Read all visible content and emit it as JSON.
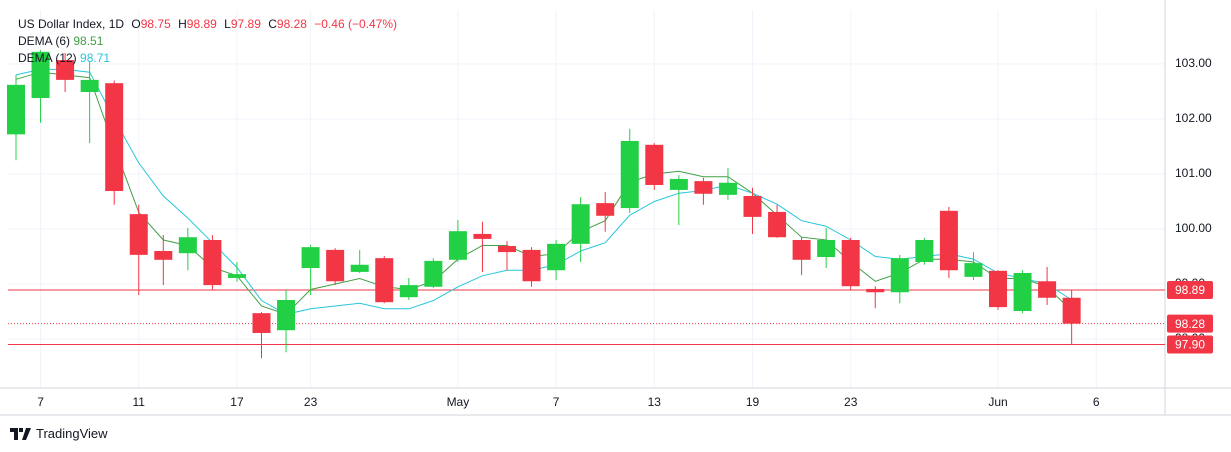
{
  "chart_data": {
    "type": "candlestick",
    "title": "US Dollar Index, 1D",
    "ohlc_letters": [
      "O",
      "H",
      "L",
      "C"
    ],
    "change": "−0.46 (−0.47%)",
    "categories": [
      null,
      "7",
      null,
      null,
      null,
      "11",
      null,
      null,
      null,
      "17",
      null,
      null,
      "23",
      null,
      null,
      null,
      null,
      null,
      "May",
      null,
      null,
      null,
      "7",
      null,
      null,
      null,
      "13",
      null,
      null,
      null,
      "19",
      null,
      null,
      null,
      "23",
      null,
      null,
      null,
      null,
      null,
      "Jun",
      null,
      null,
      null,
      "6"
    ],
    "open": [
      101.72,
      102.38,
      103.07,
      102.49,
      102.65,
      100.27,
      99.6,
      99.56,
      99.8,
      99.11,
      98.47,
      98.16,
      99.29,
      99.62,
      99.22,
      99.47,
      98.76,
      98.95,
      99.44,
      99.91,
      99.69,
      99.62,
      99.25,
      99.73,
      100.47,
      100.38,
      101.53,
      100.71,
      100.87,
      100.62,
      100.6,
      100.31,
      99.8,
      99.49,
      99.8,
      98.91,
      98.85,
      99.4,
      100.33,
      99.13,
      99.24,
      98.51,
      99.05,
      98.75,
      null
    ],
    "high": [
      102.8,
      103.25,
      103.2,
      103.04,
      102.7,
      100.44,
      99.89,
      100.02,
      99.89,
      99.4,
      98.49,
      98.89,
      99.71,
      99.65,
      99.62,
      99.51,
      99.11,
      99.47,
      100.16,
      100.13,
      99.78,
      99.67,
      99.8,
      100.58,
      100.67,
      101.82,
      101.56,
      100.98,
      100.93,
      101.11,
      100.75,
      100.44,
      99.85,
      100.02,
      99.84,
      98.96,
      99.53,
      99.84,
      100.4,
      99.58,
      99.25,
      99.25,
      99.31,
      98.89,
      null
    ],
    "low": [
      101.25,
      101.93,
      102.49,
      101.56,
      100.44,
      98.8,
      98.98,
      99.25,
      98.89,
      99.04,
      97.65,
      97.76,
      98.8,
      98.98,
      99.2,
      98.65,
      98.71,
      98.93,
      99.4,
      99.22,
      99.25,
      98.95,
      99.07,
      99.4,
      99.95,
      100.29,
      100.71,
      100.07,
      100.44,
      100.53,
      99.91,
      99.84,
      99.16,
      99.29,
      98.89,
      98.56,
      98.65,
      99.35,
      99.11,
      99.07,
      98.53,
      98.47,
      98.62,
      97.89,
      null
    ],
    "close": [
      102.62,
      103.22,
      102.71,
      102.71,
      100.69,
      99.53,
      99.44,
      99.85,
      98.98,
      99.18,
      98.11,
      98.71,
      99.67,
      99.05,
      99.35,
      98.67,
      98.98,
      99.42,
      99.96,
      99.82,
      99.58,
      99.05,
      99.73,
      100.45,
      100.24,
      101.6,
      100.8,
      100.91,
      100.64,
      100.84,
      100.22,
      99.85,
      99.44,
      99.8,
      98.96,
      98.85,
      99.47,
      99.8,
      99.25,
      99.38,
      98.58,
      99.2,
      98.75,
      98.28,
      null
    ],
    "up_color": "#22d046",
    "down_color": "#f23645",
    "series": [
      {
        "name": "DEMA (6)",
        "color": "#43a047",
        "values": [
          102.72,
          102.85,
          102.8,
          102.75,
          101.5,
          100.3,
          99.8,
          99.7,
          99.3,
          99.15,
          98.6,
          98.45,
          98.9,
          99.0,
          99.1,
          98.95,
          98.9,
          99.05,
          99.45,
          99.7,
          99.7,
          99.5,
          99.55,
          99.95,
          100.15,
          100.85,
          101.0,
          101.05,
          100.95,
          100.95,
          100.65,
          100.25,
          99.85,
          99.8,
          99.4,
          99.05,
          99.2,
          99.45,
          99.45,
          99.4,
          99.1,
          99.1,
          98.95,
          98.51,
          null
        ]
      },
      {
        "name": "DEMA (12)",
        "color": "#26c6da",
        "values": [
          102.8,
          102.9,
          102.9,
          102.85,
          102.0,
          101.2,
          100.6,
          100.2,
          99.75,
          99.3,
          98.7,
          98.45,
          98.55,
          98.6,
          98.65,
          98.55,
          98.55,
          98.7,
          98.95,
          99.15,
          99.25,
          99.25,
          99.35,
          99.6,
          99.75,
          100.25,
          100.5,
          100.65,
          100.7,
          100.8,
          100.65,
          100.45,
          100.15,
          100.05,
          99.8,
          99.5,
          99.45,
          99.5,
          99.55,
          99.45,
          99.2,
          99.1,
          99.0,
          98.71,
          null
        ]
      }
    ],
    "ylim": [
      97.11,
      103.98
    ],
    "yticks": [
      {
        "value": 98,
        "label": "98.00"
      },
      {
        "value": 99,
        "label": "99.00"
      },
      {
        "value": 100,
        "label": "100.00"
      },
      {
        "value": 101,
        "label": "101.00"
      },
      {
        "value": 102,
        "label": "102.00"
      },
      {
        "value": 103,
        "label": "103.00"
      }
    ],
    "grid": true,
    "price_lines": [
      98.89,
      98.28,
      {
        "value": 97.9,
        "label": "97.90"
      }
    ],
    "price_line_dashed": [
      false,
      true,
      false
    ],
    "footer": "TradingView"
  }
}
